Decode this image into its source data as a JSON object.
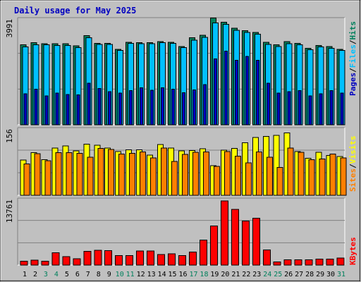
{
  "chart_data": [
    {
      "type": "bar",
      "title": "Daily usage for May 2025",
      "categories": [
        "1",
        "2",
        "3",
        "4",
        "5",
        "6",
        "7",
        "8",
        "9",
        "10",
        "11",
        "12",
        "13",
        "14",
        "15",
        "16",
        "17",
        "18",
        "19",
        "20",
        "21",
        "22",
        "23",
        "24",
        "25",
        "26",
        "27",
        "28",
        "29",
        "30",
        "31"
      ],
      "weekend_days": [
        "3",
        "4",
        "10",
        "11",
        "17",
        "18",
        "24",
        "25",
        "31"
      ],
      "ymax_label": "3991",
      "ylim": [
        0,
        3991
      ],
      "series": [
        {
          "name": "Hits",
          "color": "#00805c",
          "values": [
            2975,
            3056,
            3015,
            3015,
            3015,
            2935,
            3318,
            3036,
            3036,
            2814,
            3076,
            3056,
            3056,
            3097,
            3076,
            2915,
            3238,
            3339,
            3983,
            3820,
            3600,
            3500,
            3440,
            3076,
            2976,
            3097,
            3036,
            2854,
            2956,
            2915,
            2814
          ]
        },
        {
          "name": "Files",
          "color": "#00c0ff",
          "values": [
            2895,
            2975,
            2975,
            2955,
            2955,
            2875,
            3238,
            2996,
            2996,
            2774,
            3036,
            3015,
            3015,
            3056,
            3036,
            2875,
            3157,
            3258,
            3800,
            3741,
            3520,
            3440,
            3380,
            2996,
            2915,
            3015,
            2975,
            2794,
            2895,
            2855,
            2774
          ]
        },
        {
          "name": "Pages",
          "color": "#0000c0",
          "values": [
            1150,
            1320,
            1080,
            1180,
            1130,
            1120,
            1550,
            1350,
            1230,
            1180,
            1280,
            1380,
            1290,
            1380,
            1330,
            1200,
            1300,
            1500,
            2450,
            2750,
            2400,
            2550,
            2400,
            1550,
            1180,
            1230,
            1280,
            1080,
            1150,
            1280,
            1180
          ]
        }
      ]
    },
    {
      "type": "bar",
      "ymax_label": "156",
      "ylim": [
        0,
        156
      ],
      "series": [
        {
          "name": "Visits",
          "color": "#ffff00",
          "values": [
            81,
            98,
            82,
            109,
            114,
            102,
            118,
            115,
            109,
            101,
            105,
            105,
            93,
            117,
            109,
            102,
            103,
            107,
            68,
            104,
            108,
            121,
            133,
            136,
            138,
            144,
            101,
            85,
            99,
            92,
            89
          ]
        },
        {
          "name": "Sites",
          "color": "#ff8000",
          "values": [
            72,
            96,
            80,
            98,
            98,
            97,
            88,
            108,
            106,
            95,
            97,
            100,
            86,
            109,
            78,
            94,
            99,
            100,
            67,
            101,
            90,
            75,
            100,
            88,
            64,
            109,
            99,
            82,
            84,
            95,
            86
          ]
        }
      ]
    },
    {
      "type": "bar",
      "ymax_label": "13761",
      "ylim": [
        0,
        13761
      ],
      "series": [
        {
          "name": "KBytes",
          "color": "#ff0000",
          "values": [
            820,
            1030,
            820,
            2520,
            1730,
            1300,
            2850,
            3050,
            2990,
            1930,
            1930,
            2910,
            2910,
            2140,
            2320,
            1930,
            2700,
            5170,
            8070,
            13150,
            11410,
            9080,
            9660,
            3150,
            640,
            1110,
            1110,
            1110,
            1230,
            1230,
            1470
          ]
        }
      ]
    }
  ]
}
